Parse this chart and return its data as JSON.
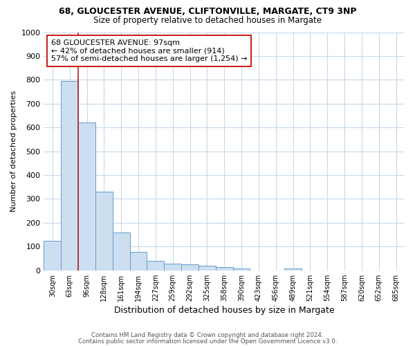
{
  "title1": "68, GLOUCESTER AVENUE, CLIFTONVILLE, MARGATE, CT9 3NP",
  "title2": "Size of property relative to detached houses in Margate",
  "xlabel": "Distribution of detached houses by size in Margate",
  "ylabel": "Number of detached properties",
  "categories": [
    "30sqm",
    "63sqm",
    "96sqm",
    "128sqm",
    "161sqm",
    "194sqm",
    "227sqm",
    "259sqm",
    "292sqm",
    "325sqm",
    "358sqm",
    "390sqm",
    "423sqm",
    "456sqm",
    "489sqm",
    "521sqm",
    "554sqm",
    "587sqm",
    "620sqm",
    "652sqm",
    "685sqm"
  ],
  "values": [
    125,
    795,
    620,
    330,
    160,
    77,
    40,
    28,
    26,
    20,
    13,
    8,
    0,
    0,
    8,
    0,
    0,
    0,
    0,
    0,
    0
  ],
  "bar_color": "#ccdff0",
  "bar_edge_color": "#6699cc",
  "vline_color": "#aa2222",
  "annotation_text": "68 GLOUCESTER AVENUE: 97sqm\n← 42% of detached houses are smaller (914)\n57% of semi-detached houses are larger (1,254) →",
  "annotation_box_color": "#cc2222",
  "footnote1": "Contains HM Land Registry data © Crown copyright and database right 2024.",
  "footnote2": "Contains public sector information licensed under the Open Government Licence v3.0.",
  "bg_color": "#ffffff",
  "grid_color": "#c5d8ea",
  "ylim": [
    0,
    1000
  ],
  "yticks": [
    0,
    100,
    200,
    300,
    400,
    500,
    600,
    700,
    800,
    900,
    1000
  ]
}
